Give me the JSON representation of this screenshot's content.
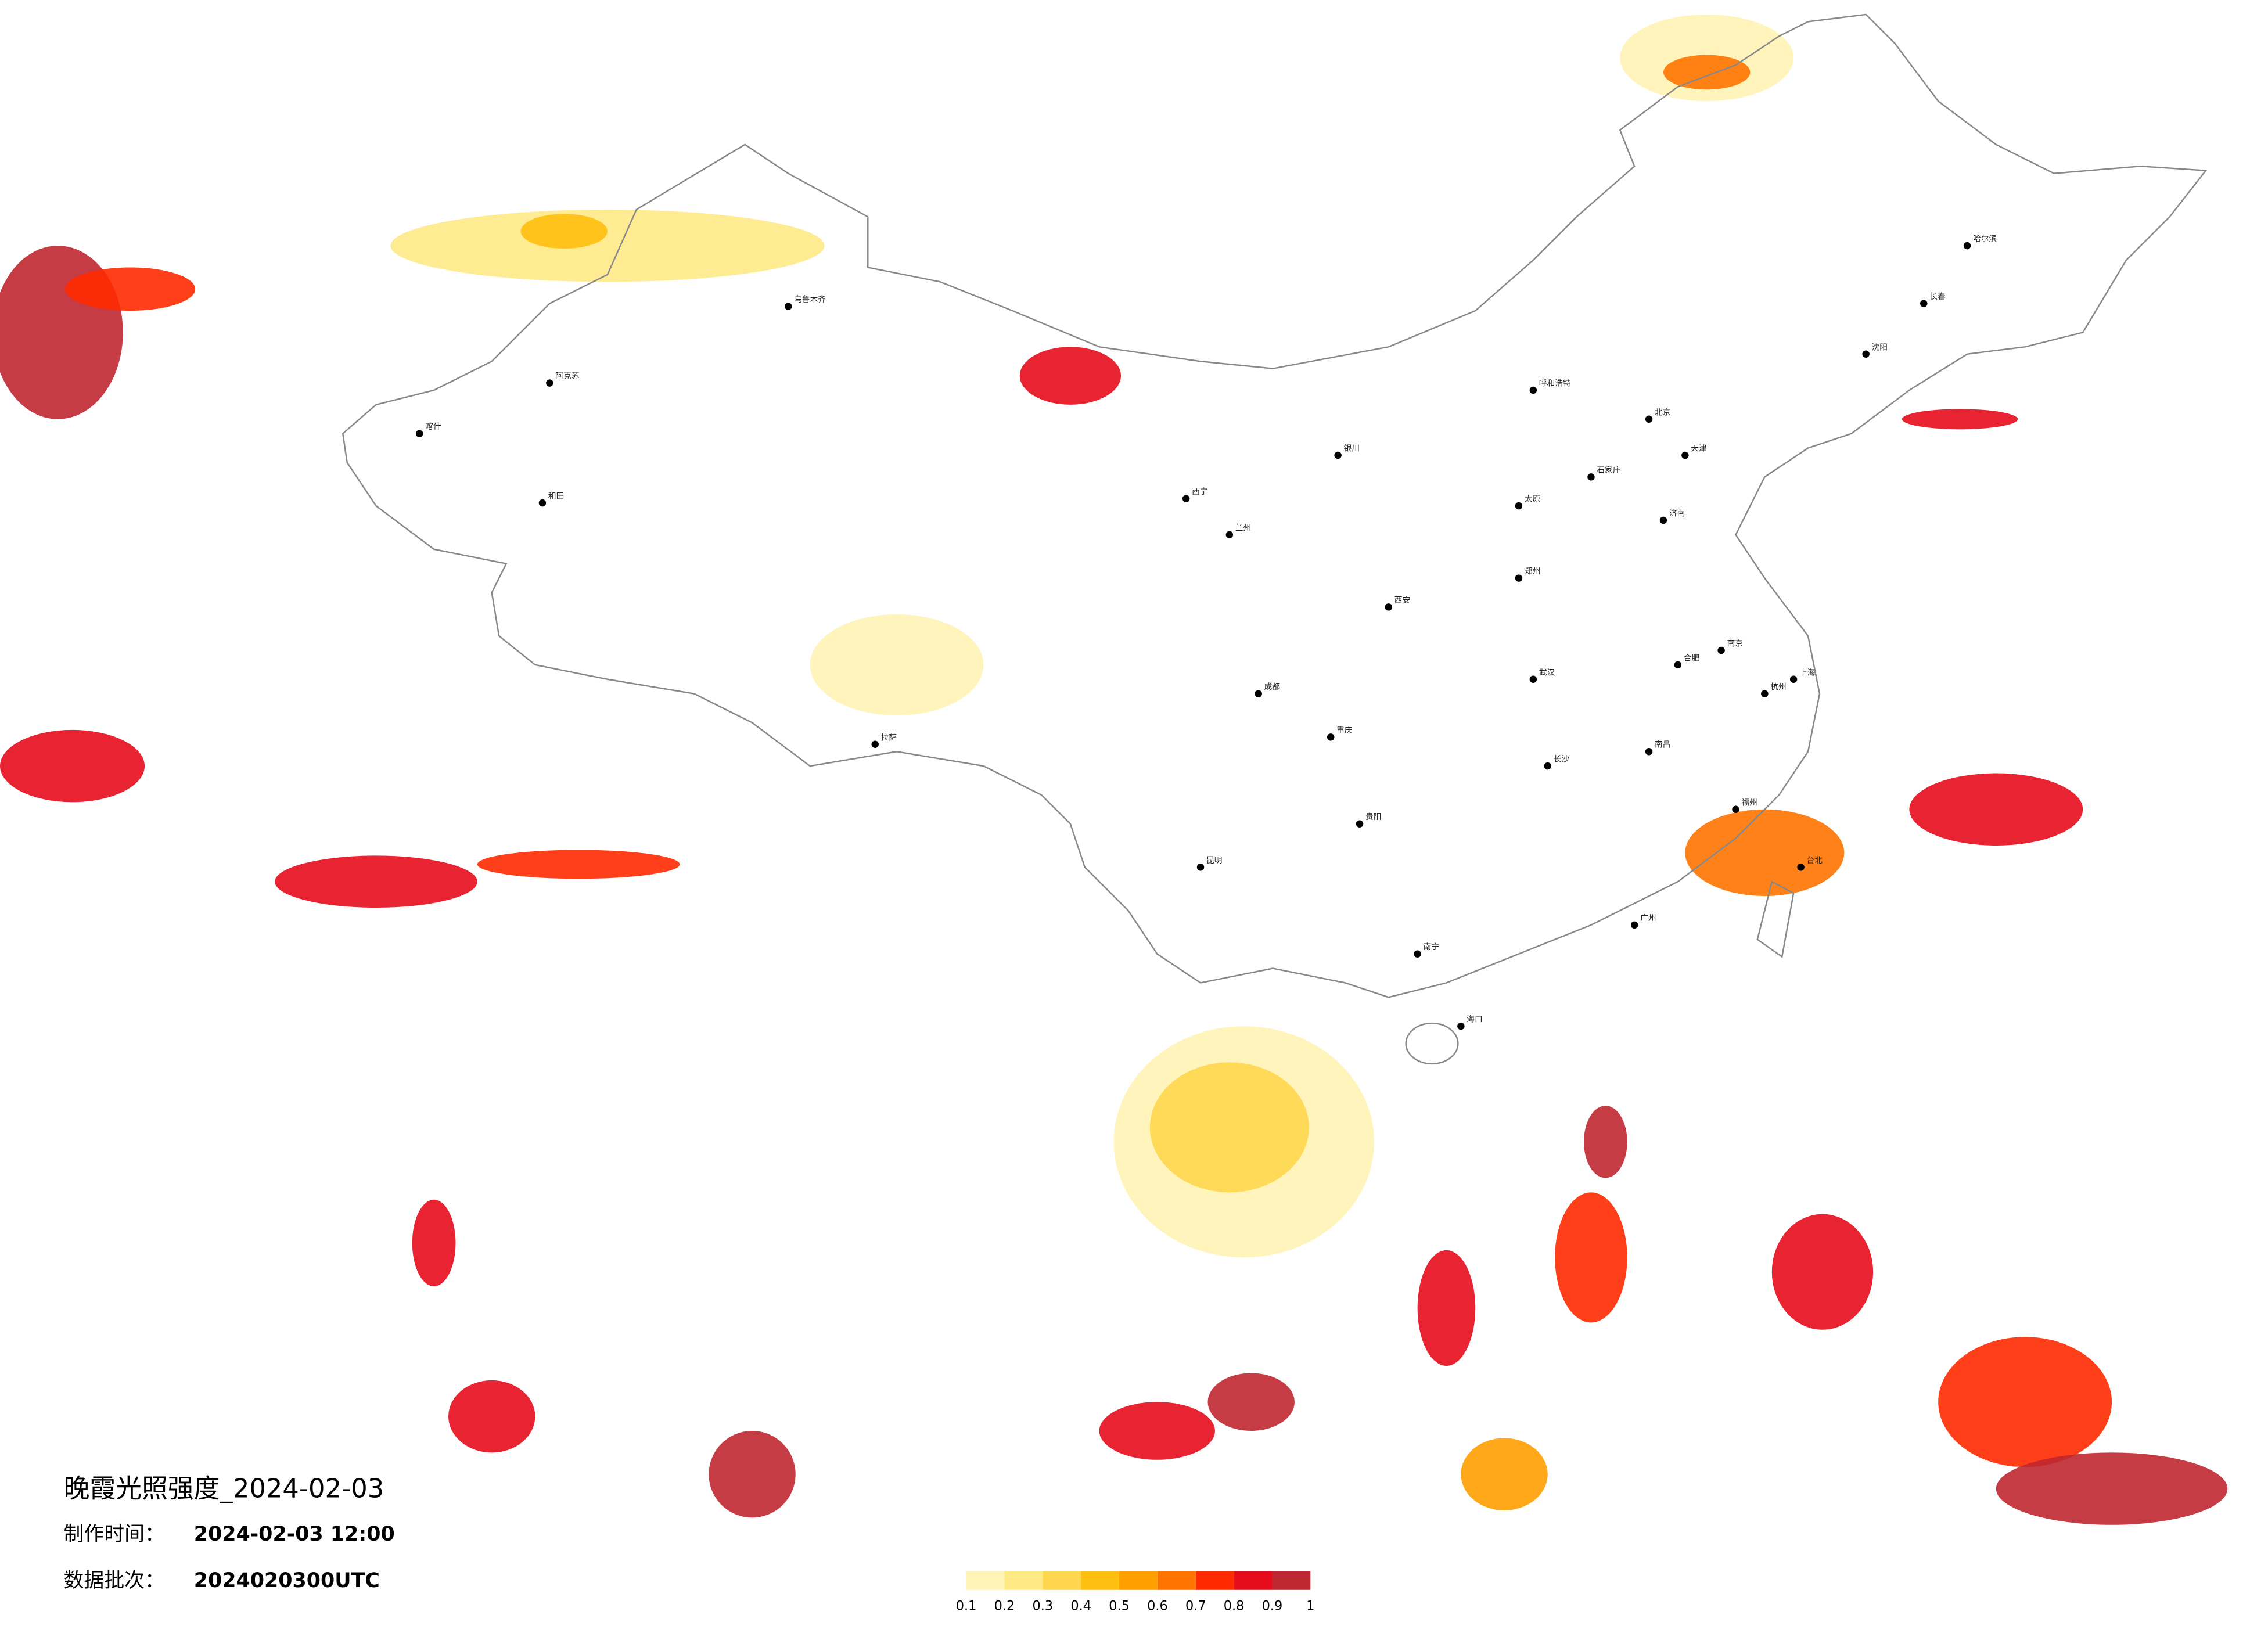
{
  "title": "晚霞光照强度_2024-02-03",
  "made_label": "制作时间：",
  "made_time": "2024-02-03 12:00",
  "batch_label": "数据批次：",
  "batch": "2024020300UTC",
  "legend": {
    "colors": [
      "#fffbe3",
      "#fff4b5",
      "#ffe985",
      "#ffd64d",
      "#ffbf10",
      "#ff9f00",
      "#ff7300",
      "#ff2a00",
      "#e60c1c",
      "#bf2731"
    ],
    "ticks": [
      0.1,
      0.2,
      0.3,
      0.4,
      0.5,
      0.6,
      0.7,
      0.8,
      0.9,
      1
    ]
  },
  "cities": [
    "北京",
    "天津",
    "上海",
    "广州",
    "重庆",
    "成都",
    "武汉",
    "西安",
    "兰州",
    "乌鲁木齐",
    "拉萨",
    "哈尔滨",
    "长春",
    "沈阳",
    "呼和浩特",
    "银川",
    "西宁",
    "昆明",
    "贵阳",
    "南宁",
    "海口",
    "福州",
    "杭州",
    "南京",
    "合肥",
    "郑州",
    "济南",
    "石家庄",
    "太原",
    "长沙",
    "南昌",
    "台北",
    "喀什",
    "和田",
    "阿克苏"
  ]
}
